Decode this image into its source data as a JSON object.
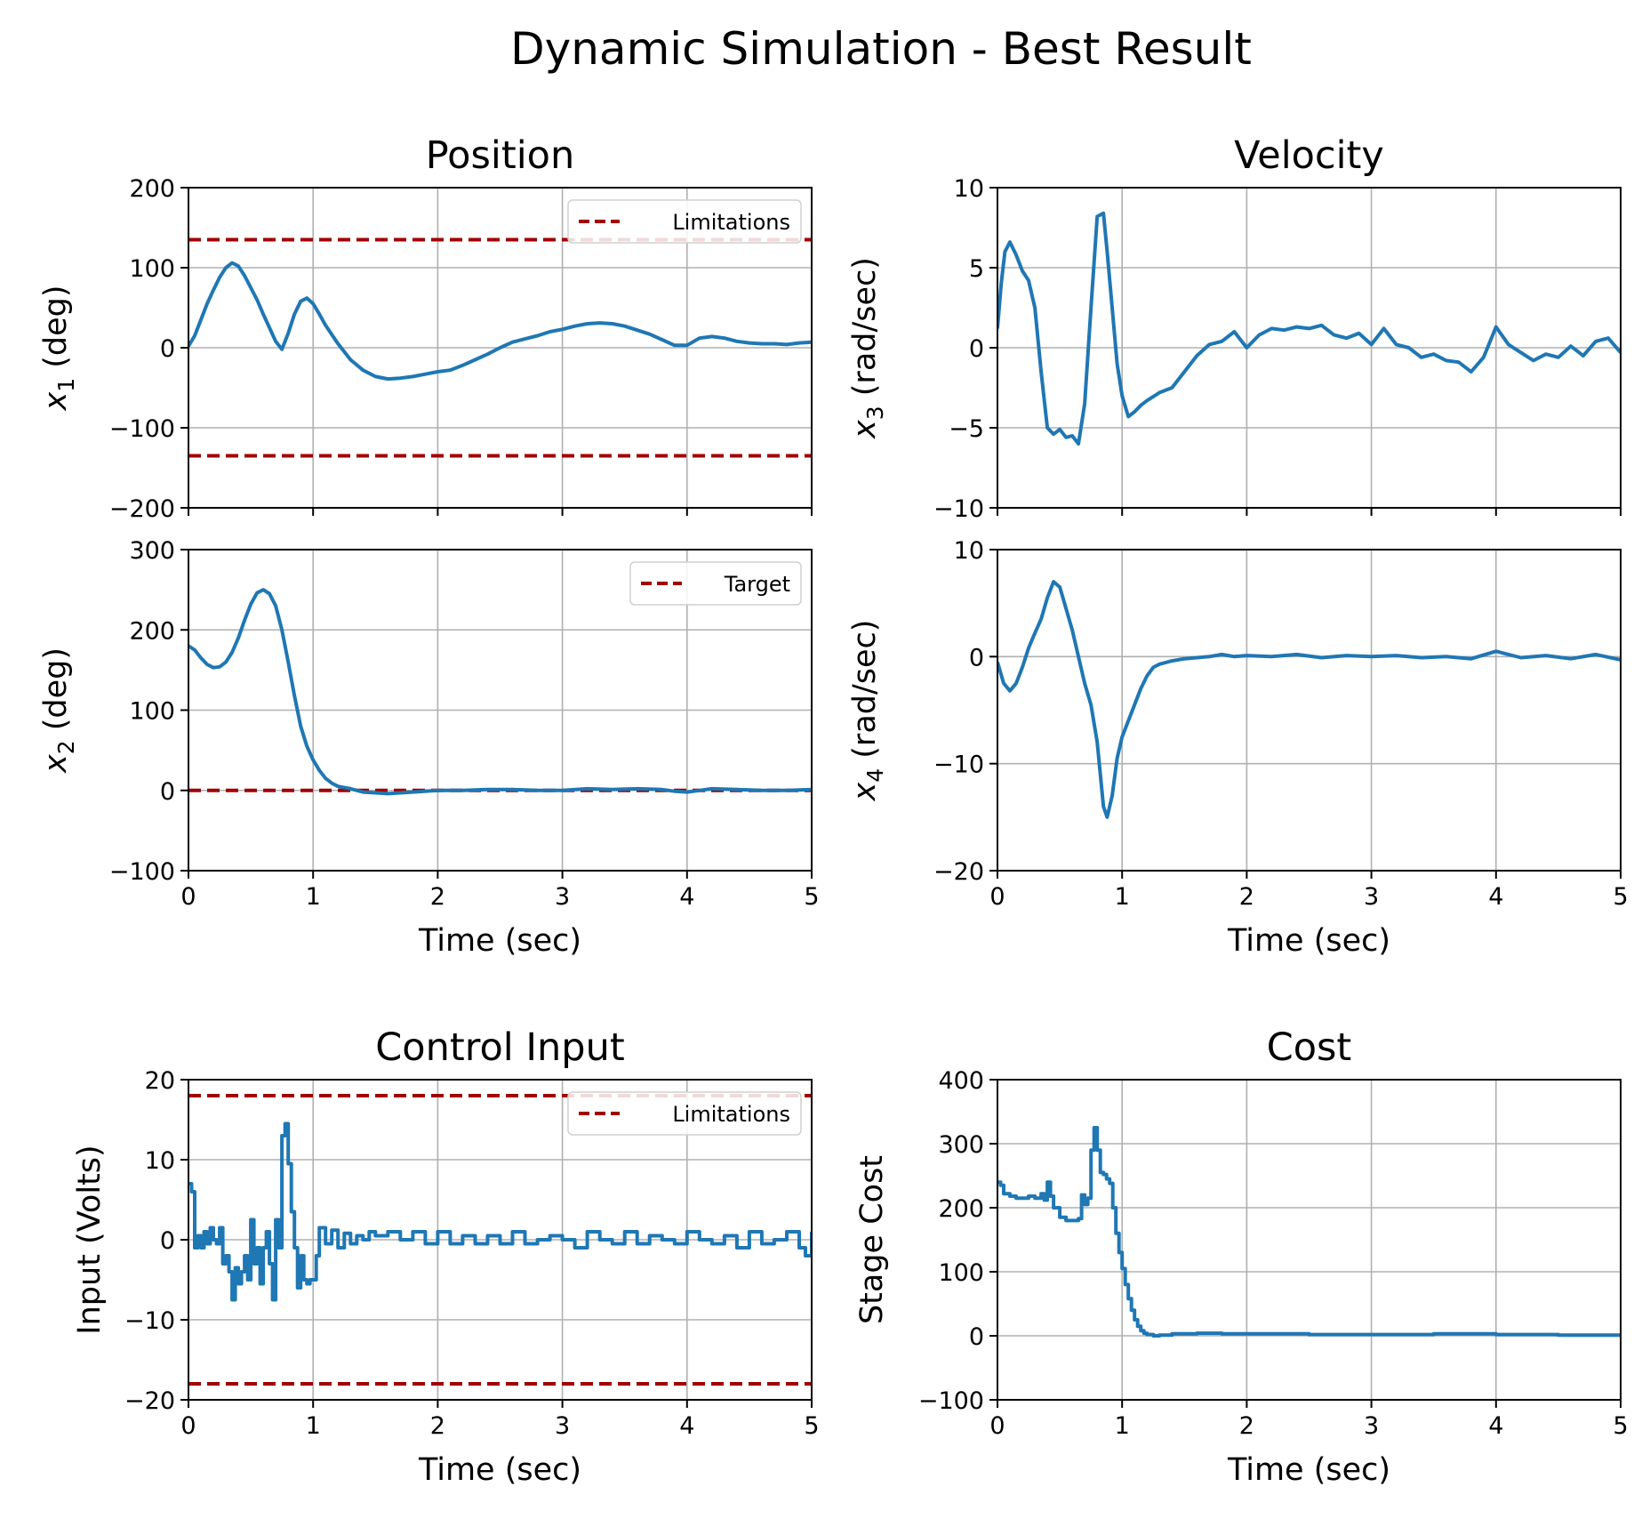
{
  "figure": {
    "title": "Dynamic Simulation - Best Result",
    "colors": {
      "series": "#1f77b4",
      "reference": "#a00000",
      "grid": "#b0b0b0",
      "axes": "#000000"
    }
  },
  "chart_data": [
    {
      "id": "x1",
      "type": "line",
      "title": "Position",
      "xlabel": "",
      "ylabel": "x_1 (deg)",
      "xlim": [
        0,
        5
      ],
      "ylim": [
        -200,
        200
      ],
      "xticks": [
        0,
        1,
        2,
        3,
        4,
        5
      ],
      "xticklabels_shown": false,
      "yticks": [
        -200,
        -100,
        0,
        100,
        200
      ],
      "grid": true,
      "legend": {
        "placement": "upper right",
        "entries": [
          "Limitations"
        ]
      },
      "references": [
        {
          "name": "Limitations",
          "style": "dashed",
          "y": 135
        },
        {
          "name": "",
          "style": "dashed",
          "y": -135
        }
      ],
      "series": [
        {
          "x": [
            0,
            0.05,
            0.1,
            0.15,
            0.2,
            0.25,
            0.3,
            0.35,
            0.4,
            0.45,
            0.5,
            0.55,
            0.6,
            0.65,
            0.7,
            0.75,
            0.8,
            0.85,
            0.9,
            0.95,
            1.0,
            1.05,
            1.1,
            1.2,
            1.3,
            1.4,
            1.5,
            1.6,
            1.7,
            1.8,
            1.9,
            2.0,
            2.1,
            2.2,
            2.3,
            2.4,
            2.5,
            2.6,
            2.7,
            2.8,
            2.9,
            3.0,
            3.1,
            3.2,
            3.3,
            3.4,
            3.5,
            3.6,
            3.7,
            3.8,
            3.9,
            4.0,
            4.1,
            4.2,
            4.3,
            4.4,
            4.5,
            4.6,
            4.7,
            4.8,
            4.9,
            5.0
          ],
          "y": [
            2,
            15,
            35,
            55,
            72,
            88,
            100,
            106,
            102,
            90,
            75,
            60,
            42,
            25,
            8,
            -2,
            18,
            42,
            58,
            62,
            55,
            42,
            28,
            5,
            -15,
            -28,
            -36,
            -39,
            -38,
            -36,
            -33,
            -30,
            -28,
            -22,
            -15,
            -8,
            0,
            7,
            11,
            15,
            20,
            23,
            27,
            30,
            31,
            30,
            27,
            22,
            17,
            10,
            3,
            3,
            12,
            14,
            12,
            8,
            6,
            5,
            5,
            4,
            6,
            7
          ]
        }
      ]
    },
    {
      "id": "x3",
      "type": "line",
      "title": "Velocity",
      "xlabel": "",
      "ylabel": "x_3 (rad/sec)",
      "xlim": [
        0,
        5
      ],
      "ylim": [
        -10,
        10
      ],
      "xticks": [
        0,
        1,
        2,
        3,
        4,
        5
      ],
      "xticklabels_shown": false,
      "yticks": [
        -10,
        -5,
        0,
        5,
        10
      ],
      "grid": true,
      "series": [
        {
          "x": [
            0,
            0.03,
            0.06,
            0.1,
            0.15,
            0.2,
            0.25,
            0.3,
            0.35,
            0.4,
            0.45,
            0.5,
            0.55,
            0.6,
            0.65,
            0.7,
            0.75,
            0.8,
            0.85,
            0.88,
            0.92,
            0.96,
            1.0,
            1.05,
            1.1,
            1.15,
            1.2,
            1.3,
            1.4,
            1.5,
            1.6,
            1.7,
            1.8,
            1.9,
            2.0,
            2.1,
            2.2,
            2.3,
            2.4,
            2.5,
            2.6,
            2.7,
            2.8,
            2.9,
            3.0,
            3.1,
            3.2,
            3.3,
            3.4,
            3.5,
            3.6,
            3.7,
            3.8,
            3.9,
            4.0,
            4.1,
            4.2,
            4.3,
            4.4,
            4.5,
            4.6,
            4.7,
            4.8,
            4.9,
            5.0
          ],
          "y": [
            1.2,
            4.0,
            6.0,
            6.6,
            5.8,
            4.8,
            4.2,
            2.5,
            -1.5,
            -5.0,
            -5.4,
            -5.1,
            -5.6,
            -5.5,
            -6.0,
            -3.5,
            2.5,
            8.2,
            8.4,
            6.0,
            2.5,
            -1.0,
            -3.0,
            -4.3,
            -4.0,
            -3.6,
            -3.3,
            -2.8,
            -2.5,
            -1.5,
            -0.5,
            0.2,
            0.4,
            1.0,
            0.0,
            0.8,
            1.2,
            1.1,
            1.3,
            1.2,
            1.4,
            0.8,
            0.6,
            0.9,
            0.2,
            1.2,
            0.2,
            0.0,
            -0.6,
            -0.4,
            -0.8,
            -0.9,
            -1.5,
            -0.6,
            1.3,
            0.2,
            -0.3,
            -0.8,
            -0.4,
            -0.6,
            0.1,
            -0.5,
            0.4,
            0.6,
            -0.3
          ]
        }
      ]
    },
    {
      "id": "x2",
      "type": "line",
      "title": "",
      "xlabel": "Time (sec)",
      "ylabel": "x_2 (deg)",
      "xlim": [
        0,
        5
      ],
      "ylim": [
        -100,
        300
      ],
      "xticks": [
        0,
        1,
        2,
        3,
        4,
        5
      ],
      "xticklabels_shown": true,
      "yticks": [
        -100,
        0,
        100,
        200,
        300
      ],
      "grid": true,
      "legend": {
        "placement": "upper right",
        "entries": [
          "Target"
        ]
      },
      "references": [
        {
          "name": "Target",
          "style": "dashed",
          "y": 0
        }
      ],
      "series": [
        {
          "x": [
            0,
            0.05,
            0.1,
            0.15,
            0.2,
            0.25,
            0.3,
            0.35,
            0.4,
            0.45,
            0.5,
            0.55,
            0.6,
            0.65,
            0.7,
            0.75,
            0.8,
            0.85,
            0.9,
            0.95,
            1.0,
            1.05,
            1.1,
            1.15,
            1.2,
            1.3,
            1.4,
            1.5,
            1.6,
            1.7,
            1.8,
            2.0,
            2.2,
            2.4,
            2.6,
            2.8,
            3.0,
            3.2,
            3.4,
            3.6,
            3.8,
            3.9,
            4.0,
            4.1,
            4.2,
            4.4,
            4.6,
            4.8,
            5.0
          ],
          "y": [
            180,
            175,
            165,
            157,
            153,
            154,
            160,
            172,
            190,
            212,
            232,
            246,
            250,
            245,
            230,
            200,
            160,
            118,
            80,
            55,
            38,
            25,
            15,
            9,
            5,
            2,
            -2,
            -3,
            -4,
            -3,
            -2,
            0,
            0,
            1,
            1,
            0,
            0,
            2,
            1,
            2,
            1,
            -1,
            -2,
            0,
            2,
            1,
            0,
            0,
            1
          ]
        }
      ]
    },
    {
      "id": "x4",
      "type": "line",
      "title": "",
      "xlabel": "Time (sec)",
      "ylabel": "x_4 (rad/sec)",
      "xlim": [
        0,
        5
      ],
      "ylim": [
        -20,
        10
      ],
      "xticks": [
        0,
        1,
        2,
        3,
        4,
        5
      ],
      "xticklabels_shown": true,
      "yticks": [
        -20,
        -10,
        0,
        10
      ],
      "grid": true,
      "series": [
        {
          "x": [
            0,
            0.05,
            0.1,
            0.15,
            0.2,
            0.25,
            0.3,
            0.35,
            0.4,
            0.45,
            0.5,
            0.55,
            0.6,
            0.65,
            0.7,
            0.75,
            0.8,
            0.85,
            0.88,
            0.92,
            0.96,
            1.0,
            1.05,
            1.1,
            1.15,
            1.2,
            1.25,
            1.3,
            1.4,
            1.5,
            1.6,
            1.7,
            1.8,
            1.9,
            2.0,
            2.2,
            2.4,
            2.6,
            2.8,
            3.0,
            3.2,
            3.4,
            3.6,
            3.8,
            4.0,
            4.2,
            4.4,
            4.6,
            4.8,
            5.0
          ],
          "y": [
            -0.5,
            -2.5,
            -3.2,
            -2.5,
            -1.0,
            0.8,
            2.2,
            3.5,
            5.5,
            7.0,
            6.5,
            4.5,
            2.5,
            0.0,
            -2.5,
            -4.5,
            -8.0,
            -14.0,
            -15.0,
            -13.0,
            -9.5,
            -7.5,
            -6.0,
            -4.5,
            -3.0,
            -1.8,
            -1.0,
            -0.7,
            -0.4,
            -0.2,
            -0.1,
            0.0,
            0.2,
            0.0,
            0.1,
            0.0,
            0.2,
            -0.1,
            0.1,
            0.0,
            0.1,
            -0.1,
            0.0,
            -0.2,
            0.5,
            -0.1,
            0.1,
            -0.2,
            0.2,
            -0.3
          ]
        }
      ]
    },
    {
      "id": "u",
      "type": "line",
      "title": "Control Input",
      "xlabel": "Time (sec)",
      "ylabel": "Input (Volts)",
      "xlim": [
        0,
        5
      ],
      "ylim": [
        -20,
        20
      ],
      "xticks": [
        0,
        1,
        2,
        3,
        4,
        5
      ],
      "xticklabels_shown": true,
      "yticks": [
        -20,
        -10,
        0,
        10,
        20
      ],
      "grid": true,
      "step": true,
      "legend": {
        "placement": "upper right",
        "entries": [
          "Limitations"
        ]
      },
      "references": [
        {
          "name": "Limitations",
          "style": "dashed",
          "y": 18
        },
        {
          "name": "",
          "style": "dashed",
          "y": -18
        }
      ],
      "series": [
        {
          "x": [
            0,
            0.025,
            0.05,
            0.075,
            0.1,
            0.125,
            0.15,
            0.175,
            0.2,
            0.225,
            0.25,
            0.275,
            0.3,
            0.325,
            0.35,
            0.375,
            0.4,
            0.425,
            0.45,
            0.475,
            0.5,
            0.525,
            0.55,
            0.575,
            0.6,
            0.625,
            0.65,
            0.675,
            0.7,
            0.725,
            0.75,
            0.775,
            0.8,
            0.825,
            0.85,
            0.875,
            0.9,
            0.925,
            0.95,
            0.975,
            1.0,
            1.025,
            1.05,
            1.1,
            1.15,
            1.2,
            1.25,
            1.3,
            1.35,
            1.4,
            1.45,
            1.5,
            1.6,
            1.7,
            1.8,
            1.9,
            2.0,
            2.1,
            2.2,
            2.3,
            2.4,
            2.5,
            2.6,
            2.7,
            2.8,
            2.9,
            3.0,
            3.1,
            3.2,
            3.3,
            3.4,
            3.5,
            3.6,
            3.7,
            3.8,
            3.9,
            4.0,
            4.1,
            4.2,
            4.3,
            4.4,
            4.5,
            4.6,
            4.7,
            4.8,
            4.9,
            4.95,
            5.0
          ],
          "y": [
            7.0,
            6.0,
            -1.0,
            0.5,
            -1.0,
            1.0,
            -0.5,
            1.5,
            0.0,
            -0.5,
            1.5,
            -3.0,
            -2.0,
            -4.0,
            -7.5,
            -3.5,
            -5.5,
            -4.0,
            -2.0,
            -5.0,
            2.5,
            -3.0,
            -1.0,
            -5.5,
            -1.0,
            1.0,
            -3.0,
            -7.5,
            2.5,
            -1.0,
            13.0,
            14.5,
            9.5,
            3.5,
            -1.0,
            -6.0,
            -2.0,
            -5.0,
            -5.5,
            -5.0,
            -5.0,
            -2.0,
            1.5,
            -0.5,
            1.2,
            -1.0,
            0.8,
            -0.5,
            0.5,
            0.0,
            1.0,
            0.5,
            1.0,
            0.0,
            1.0,
            -0.5,
            1.0,
            -0.5,
            0.5,
            -0.5,
            0.5,
            -0.5,
            1.0,
            -0.5,
            0.0,
            0.5,
            0.0,
            -1.0,
            1.0,
            0.0,
            -0.5,
            1.0,
            -0.5,
            0.5,
            0.0,
            -0.5,
            1.0,
            0.0,
            -0.5,
            0.5,
            -1.0,
            1.0,
            -0.5,
            0.0,
            1.0,
            -1.0,
            -2.0,
            1.0
          ]
        }
      ]
    },
    {
      "id": "cost",
      "type": "line",
      "title": "Cost",
      "xlabel": "Time (sec)",
      "ylabel": "Stage Cost",
      "xlim": [
        0,
        5
      ],
      "ylim": [
        -100,
        400
      ],
      "xticks": [
        0,
        1,
        2,
        3,
        4,
        5
      ],
      "xticklabels_shown": true,
      "yticks": [
        -100,
        0,
        100,
        200,
        300,
        400
      ],
      "grid": true,
      "step": true,
      "series": [
        {
          "x": [
            0,
            0.025,
            0.05,
            0.1,
            0.15,
            0.2,
            0.25,
            0.3,
            0.35,
            0.375,
            0.4,
            0.425,
            0.45,
            0.5,
            0.55,
            0.6,
            0.65,
            0.675,
            0.7,
            0.725,
            0.75,
            0.775,
            0.8,
            0.825,
            0.85,
            0.875,
            0.9,
            0.925,
            0.95,
            0.975,
            1.0,
            1.025,
            1.05,
            1.075,
            1.1,
            1.125,
            1.15,
            1.175,
            1.2,
            1.25,
            1.3,
            1.4,
            1.6,
            1.8,
            2.0,
            2.5,
            3.0,
            3.5,
            4.0,
            4.5,
            5.0
          ],
          "y": [
            240,
            235,
            222,
            218,
            215,
            215,
            218,
            215,
            222,
            212,
            240,
            218,
            200,
            185,
            180,
            180,
            183,
            220,
            205,
            215,
            290,
            325,
            290,
            255,
            252,
            245,
            238,
            200,
            160,
            130,
            105,
            80,
            58,
            40,
            25,
            15,
            8,
            4,
            2,
            0,
            1,
            3,
            4,
            3,
            3,
            2,
            2,
            3,
            2,
            1,
            1
          ]
        }
      ]
    }
  ]
}
